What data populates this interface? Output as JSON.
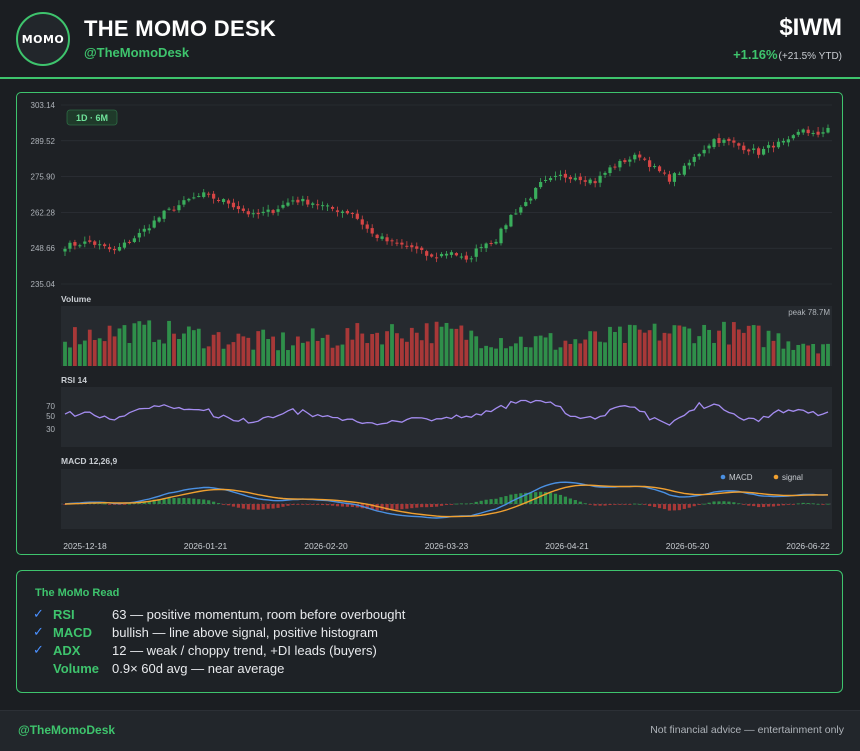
{
  "brand": {
    "logo_text": "MOMO",
    "title": "THE MOMO DESK",
    "handle": "@TheMomoDesk"
  },
  "ticker": {
    "symbol": "$IWM",
    "change": "+1.16%",
    "ytd": "(+21.5% YTD)"
  },
  "colors": {
    "accent": "#3ec46d",
    "up": "#3aae5c",
    "down": "#d64545",
    "rsi": "#a48cf0",
    "macd": "#4a90e2",
    "signal": "#f0a030"
  },
  "chart_data": [
    {
      "type": "candlestick",
      "badge": "1D · 6M",
      "ylim": [
        235.04,
        303.14
      ],
      "y_ticks": [
        "303.14",
        "289.52",
        "275.90",
        "262.28",
        "248.66",
        "235.04"
      ],
      "x_ticks": [
        "2025-12-18",
        "2026-01-21",
        "2026-02-20",
        "2026-03-23",
        "2026-04-21",
        "2026-05-20",
        "2026-06-22"
      ],
      "close_anchors": [
        [
          0,
          249.5
        ],
        [
          5,
          251
        ],
        [
          10,
          247.5
        ],
        [
          15,
          254
        ],
        [
          20,
          262
        ],
        [
          25,
          267
        ],
        [
          28,
          269
        ],
        [
          33,
          266
        ],
        [
          38,
          261
        ],
        [
          42,
          263
        ],
        [
          46,
          267
        ],
        [
          50,
          266
        ],
        [
          53,
          264
        ],
        [
          58,
          262
        ],
        [
          62,
          254
        ],
        [
          66,
          250.5
        ],
        [
          70,
          249
        ],
        [
          74,
          245
        ],
        [
          78,
          247.5
        ],
        [
          81,
          243.5
        ],
        [
          84,
          250
        ],
        [
          87,
          252
        ],
        [
          90,
          261
        ],
        [
          93,
          266
        ],
        [
          96,
          273
        ],
        [
          100,
          276
        ],
        [
          103,
          276
        ],
        [
          107,
          274
        ],
        [
          110,
          279
        ],
        [
          113,
          282
        ],
        [
          116,
          284
        ],
        [
          119,
          279
        ],
        [
          122,
          275
        ],
        [
          125,
          279
        ],
        [
          128,
          285
        ],
        [
          131,
          290
        ],
        [
          134,
          289
        ],
        [
          137,
          287
        ],
        [
          140,
          285
        ],
        [
          143,
          288
        ],
        [
          146,
          289
        ],
        [
          149,
          294
        ],
        [
          152,
          291
        ],
        [
          154,
          295
        ]
      ]
    },
    {
      "type": "bar",
      "title": "Volume",
      "annotation": "peak 78.7M",
      "peak": 78.7
    },
    {
      "type": "line",
      "title": "RSI 14",
      "y_ticks": [
        "70",
        "50",
        "30"
      ],
      "ylim": [
        10,
        90
      ]
    },
    {
      "type": "line",
      "title": "MACD 12,26,9",
      "series": [
        {
          "name": "MACD"
        },
        {
          "name": "signal"
        }
      ]
    }
  ],
  "read": {
    "title": "The MoMo Read",
    "check_icon": "check-icon",
    "items": [
      {
        "label": "RSI",
        "text": "63 — positive momentum, room before overbought",
        "checked": true
      },
      {
        "label": "MACD",
        "text": "bullish — line above signal, positive histogram",
        "checked": true
      },
      {
        "label": "ADX",
        "text": "12 — weak / choppy trend, +DI leads (buyers)",
        "checked": true
      },
      {
        "label": "Volume",
        "text": "0.9× 60d avg — near average",
        "checked": false
      }
    ]
  },
  "footer": {
    "handle": "@TheMomoDesk",
    "note": "Not financial advice — entertainment only"
  }
}
